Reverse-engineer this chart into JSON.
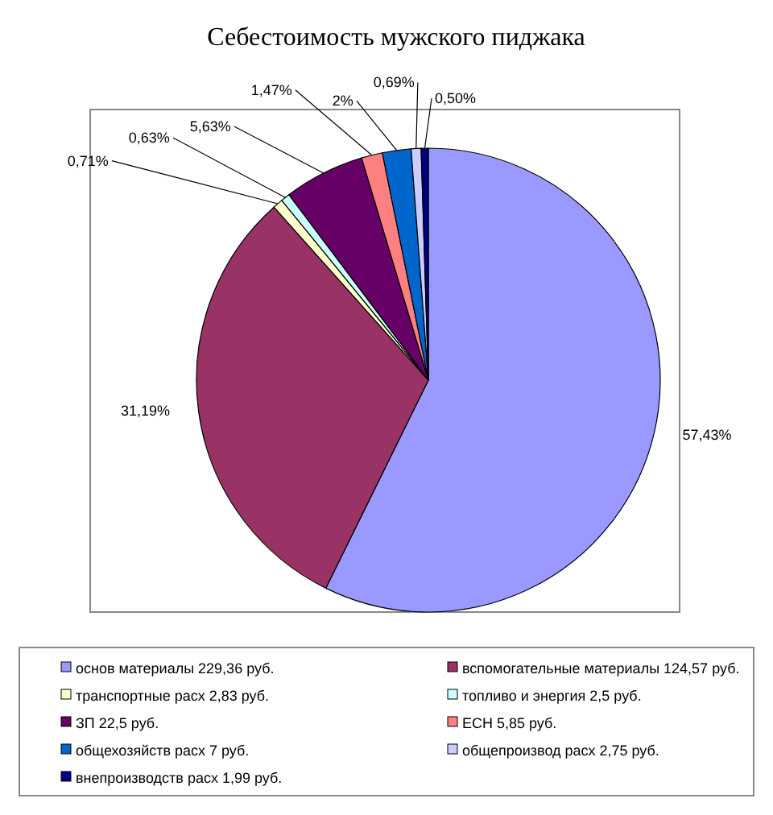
{
  "chart_data": {
    "type": "pie",
    "title": "Себестоимость мужского пиджака",
    "categories": [
      "основ материалы 229,36 руб.",
      "вспомогательные материалы 124,57 руб.",
      "транспортные расх 2,83 руб.",
      "топливо и энергия 2,5 руб.",
      "ЗП 22,5 руб.",
      "ЕСН 5,85 руб.",
      "общехозяйств расх 7 руб.",
      "общепроизвод расх 2,75 руб.",
      "внепроизводств расх 1,99 руб."
    ],
    "values": [
      57.43,
      31.19,
      0.71,
      0.63,
      5.63,
      1.47,
      2,
      0.69,
      0.5
    ],
    "value_labels": [
      "57,43%",
      "31,19%",
      "0,71%",
      "0,63%",
      "5,63%",
      "1,47%",
      "2%",
      "0,69%",
      "0,50%"
    ],
    "colors": [
      "#9999ff",
      "#993366",
      "#ffffcc",
      "#ccffff",
      "#660066",
      "#ff8080",
      "#0066cc",
      "#ccccff",
      "#000080"
    ],
    "legend": "bottom"
  }
}
